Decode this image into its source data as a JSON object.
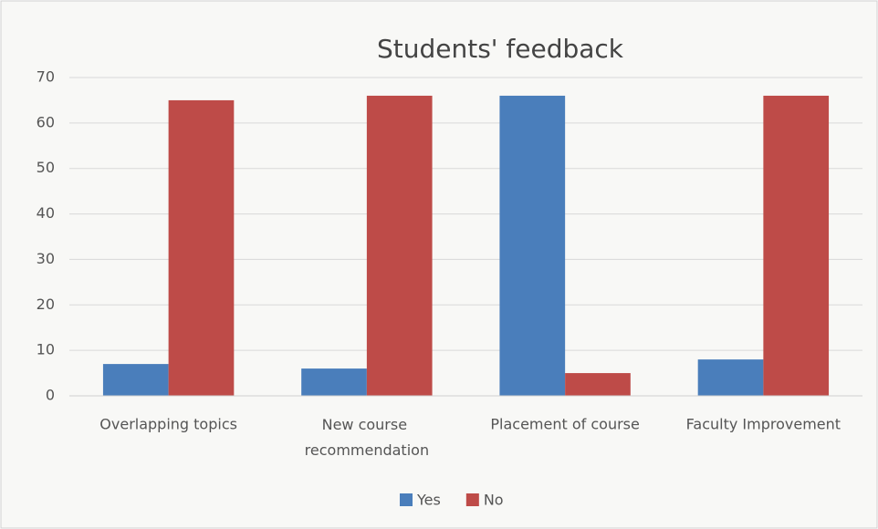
{
  "chart_data": {
    "type": "bar",
    "title": "Students' feedback",
    "categories": [
      "Overlapping topics",
      "New course recommendation",
      "Placement of course",
      "Faculty Improvement"
    ],
    "series": [
      {
        "name": "Yes",
        "color": "#4a7ebb",
        "values": [
          7,
          6,
          66,
          8
        ]
      },
      {
        "name": "No",
        "color": "#be4b48",
        "values": [
          65,
          66,
          5,
          66
        ]
      }
    ],
    "ylim": [
      0,
      70
    ],
    "yticks": [
      0,
      10,
      20,
      30,
      40,
      50,
      60,
      70
    ],
    "grid": true,
    "legend": "bottom"
  }
}
